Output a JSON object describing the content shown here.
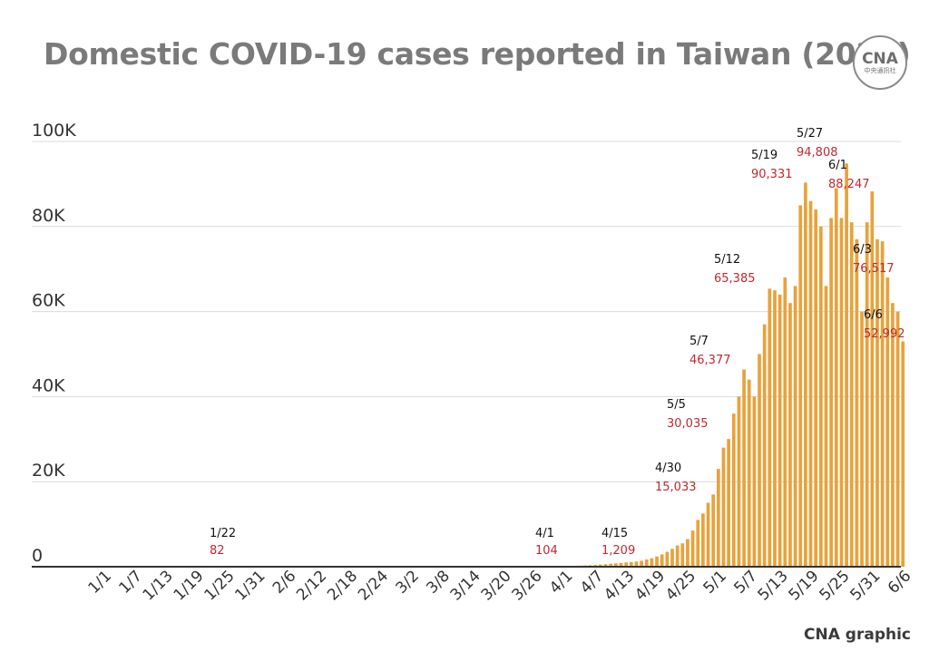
{
  "title": "Domestic COVID-19 cases reported in Taiwan (2022)",
  "logo": {
    "mark": "CNA",
    "sub": "中央通訊社"
  },
  "credit": "CNA graphic",
  "colors": {
    "bar": "#E8A23A",
    "grid": "#d9d9d9",
    "axis": "#333333",
    "annotation_value": "#c0282d",
    "title": "#7a7a7a"
  },
  "chart_data": {
    "type": "bar",
    "title": "Domestic COVID-19 cases reported in Taiwan (2022)",
    "xlabel": "",
    "ylabel": "",
    "ylim": [
      0,
      100000
    ],
    "grid": true,
    "yticks": [
      {
        "value": 0,
        "label": "0"
      },
      {
        "value": 20000,
        "label": "20K"
      },
      {
        "value": 40000,
        "label": "40K"
      },
      {
        "value": 60000,
        "label": "60K"
      },
      {
        "value": 80000,
        "label": "80K"
      },
      {
        "value": 100000,
        "label": "100K"
      }
    ],
    "xtick_labels": [
      "1/1",
      "1/7",
      "1/13",
      "1/19",
      "1/25",
      "1/31",
      "2/6",
      "2/12",
      "2/18",
      "2/24",
      "3/2",
      "3/8",
      "3/14",
      "3/20",
      "3/26",
      "4/1",
      "4/7",
      "4/13",
      "4/19",
      "4/25",
      "5/1",
      "5/7",
      "5/13",
      "5/19",
      "5/25",
      "5/31",
      "6/6"
    ],
    "series": [
      {
        "values": [
          0,
          0,
          0,
          0,
          0,
          0,
          0,
          0,
          0,
          0,
          0,
          0,
          0,
          0,
          0,
          0,
          0,
          0,
          0,
          0,
          0,
          82,
          0,
          0,
          0,
          0,
          0,
          0,
          0,
          0,
          0,
          0,
          0,
          0,
          0,
          0,
          0,
          0,
          0,
          0,
          0,
          0,
          0,
          0,
          0,
          0,
          0,
          0,
          0,
          0,
          0,
          0,
          0,
          0,
          0,
          0,
          0,
          0,
          0,
          0,
          0,
          0,
          0,
          0,
          0,
          0,
          0,
          0,
          0,
          0,
          0,
          0,
          0,
          0,
          0,
          0,
          0,
          0,
          0,
          0,
          0,
          0,
          0,
          0,
          0,
          0,
          0,
          0,
          0,
          0,
          104,
          200,
          250,
          300,
          350,
          400,
          500,
          600,
          700,
          800,
          900,
          1000,
          1100,
          1209,
          1400,
          1700,
          2000,
          2400,
          2900,
          3500,
          4200,
          5000,
          5500,
          6500,
          8500,
          11000,
          12500,
          15033,
          17000,
          23000,
          28000,
          30035,
          36000,
          40000,
          46377,
          44000,
          40000,
          50000,
          57000,
          65385,
          65000,
          64000,
          68000,
          62000,
          66000,
          85000,
          90331,
          86000,
          84000,
          80000,
          66000,
          82000,
          89000,
          82000,
          94808,
          81000,
          77000,
          60000,
          81000,
          88247,
          77000,
          76517,
          68000,
          62000,
          60000,
          52992
        ]
      }
    ],
    "annotations": [
      {
        "date": "1/22",
        "value": "82"
      },
      {
        "date": "4/1",
        "value": "104"
      },
      {
        "date": "4/15",
        "value": "1,209"
      },
      {
        "date": "4/30",
        "value": "15,033"
      },
      {
        "date": "5/5",
        "value": "30,035"
      },
      {
        "date": "5/7",
        "value": "46,377"
      },
      {
        "date": "5/12",
        "value": "65,385"
      },
      {
        "date": "5/19",
        "value": "90,331"
      },
      {
        "date": "5/27",
        "value": "94,808"
      },
      {
        "date": "6/1",
        "value": "88,247"
      },
      {
        "date": "6/3",
        "value": "76,517"
      },
      {
        "date": "6/6",
        "value": "52,992"
      }
    ]
  }
}
